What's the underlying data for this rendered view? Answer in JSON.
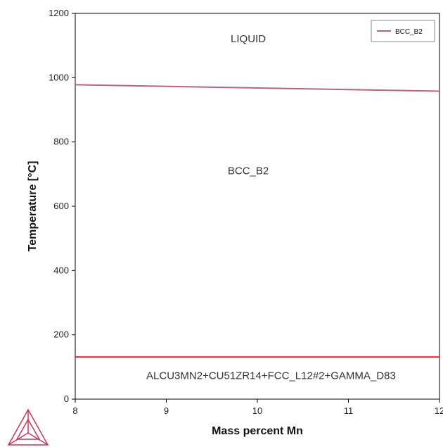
{
  "chart_data": {
    "type": "line",
    "xlabel": "Mass percent Mn",
    "ylabel": "Temperature [°C]",
    "xlim": [
      8,
      12
    ],
    "ylim": [
      0,
      1200
    ],
    "x_ticks": [
      8,
      9,
      10,
      11,
      12
    ],
    "y_ticks": [
      0,
      200,
      400,
      600,
      800,
      1000,
      1200
    ],
    "grid": false,
    "legend_position": "top-right",
    "series": [
      {
        "name": "BCC_B2",
        "color": "#b5647a",
        "x": [
          8,
          12
        ],
        "y": [
          978,
          958
        ]
      },
      {
        "color": "#e8202e",
        "x": [
          8,
          12
        ],
        "y": [
          131,
          131
        ]
      }
    ],
    "annotations": [
      {
        "text": "LIQUID",
        "x": 9.9,
        "y": 1110
      },
      {
        "text": "BCC_B2",
        "x": 9.9,
        "y": 700
      },
      {
        "text": "ALCU3MN2+CU51ZR14+FCC_L12#2+GAMMA_D83",
        "x": 10.15,
        "y": 62
      }
    ]
  },
  "logo": {
    "name": "thermo-calc-logo-icon",
    "color": "#c0395a"
  }
}
